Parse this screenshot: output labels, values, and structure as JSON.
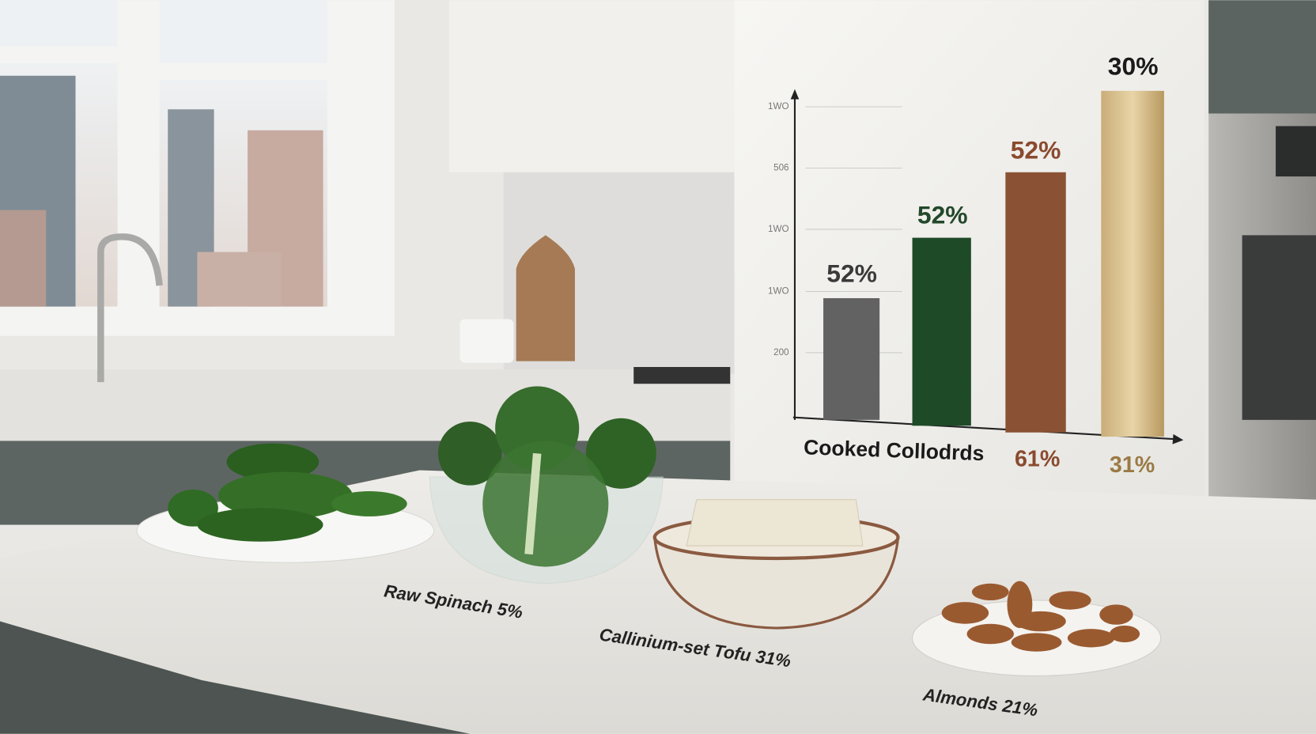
{
  "scene": {
    "chart": {
      "axis_labels": [
        "1WO",
        "506",
        "1WO",
        "1WO",
        "200"
      ],
      "bar_labels": [
        "52%",
        "52%",
        "52%",
        "30%"
      ],
      "bottom_labels": [
        "Cooked Collodrds",
        "61%",
        "31%"
      ]
    },
    "counter_labels": [
      "Raw Spinach 5%",
      "Callinium-set Tofu 31%",
      "Almonds 21%"
    ]
  }
}
